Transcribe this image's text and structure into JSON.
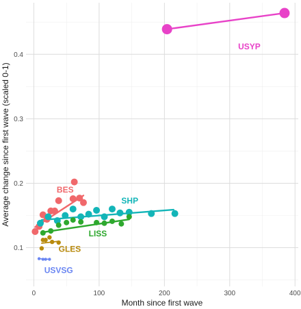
{
  "chart_data": {
    "type": "scatter",
    "xlabel": "Month since first wave",
    "ylabel": "Average change since first wave (scaled 0-1)",
    "xlim": [
      -12,
      405
    ],
    "ylim": [
      0.04,
      0.48
    ],
    "x_ticks": [
      0,
      100,
      200,
      300,
      400
    ],
    "y_ticks": [
      0.1,
      0.2,
      0.3,
      0.4
    ],
    "y_tick_labels": [
      "0.1",
      "0.2",
      "0.3",
      "0.4"
    ],
    "x_minor_ticks": [
      50,
      150,
      250,
      350
    ],
    "y_minor_ticks": [
      0.05,
      0.15,
      0.25,
      0.35,
      0.45
    ],
    "grid": true,
    "legend": "none",
    "series": [
      {
        "name": "USYP",
        "color": "#e842c8",
        "marker_size": "large",
        "label_at": [
          330,
          0.412
        ],
        "points": [
          [
            204,
            0.439
          ],
          [
            384,
            0.464
          ]
        ],
        "fit": [
          [
            204,
            0.439
          ],
          [
            384,
            0.464
          ]
        ]
      },
      {
        "name": "BES",
        "color": "#f0686b",
        "marker_size": "medium",
        "label_at": [
          48,
          0.19
        ],
        "points": [
          [
            2,
            0.125
          ],
          [
            8,
            0.133
          ],
          [
            14,
            0.151
          ],
          [
            20,
            0.144
          ],
          [
            26,
            0.157
          ],
          [
            32,
            0.157
          ],
          [
            38,
            0.173
          ],
          [
            60,
            0.176
          ],
          [
            62,
            0.202
          ],
          [
            70,
            0.177
          ],
          [
            76,
            0.17
          ]
        ],
        "fit": [
          [
            2,
            0.132
          ],
          [
            76,
            0.181
          ]
        ]
      },
      {
        "name": "SHP",
        "color": "#13b5b8",
        "marker_size": "medium",
        "label_at": [
          147,
          0.173
        ],
        "points": [
          [
            10,
            0.138
          ],
          [
            22,
            0.148
          ],
          [
            36,
            0.142
          ],
          [
            48,
            0.15
          ],
          [
            60,
            0.16
          ],
          [
            72,
            0.148
          ],
          [
            84,
            0.152
          ],
          [
            96,
            0.158
          ],
          [
            108,
            0.148
          ],
          [
            120,
            0.16
          ],
          [
            132,
            0.154
          ],
          [
            146,
            0.155
          ],
          [
            180,
            0.153
          ],
          [
            216,
            0.153
          ]
        ],
        "fit": [
          [
            12,
            0.143
          ],
          [
            214,
            0.159
          ]
        ]
      },
      {
        "name": "LISS",
        "color": "#2ea82e",
        "marker_size": "small",
        "label_at": [
          98,
          0.122
        ],
        "points": [
          [
            14,
            0.123
          ],
          [
            26,
            0.126
          ],
          [
            38,
            0.135
          ],
          [
            50,
            0.139
          ],
          [
            60,
            0.143
          ],
          [
            72,
            0.14
          ],
          [
            96,
            0.139
          ],
          [
            108,
            0.138
          ],
          [
            120,
            0.141
          ],
          [
            134,
            0.137
          ],
          [
            146,
            0.148
          ]
        ],
        "fit": [
          [
            14,
            0.124
          ],
          [
            146,
            0.144
          ]
        ]
      },
      {
        "name": "GLES",
        "color": "#b88a0d",
        "marker_size": "tiny",
        "label_at": [
          55,
          0.098
        ],
        "points": [
          [
            12,
            0.099
          ],
          [
            14,
            0.112
          ],
          [
            18,
            0.112
          ],
          [
            24,
            0.116
          ],
          [
            28,
            0.109
          ],
          [
            38,
            0.108
          ]
        ],
        "fit": [
          [
            12,
            0.107
          ],
          [
            38,
            0.11
          ]
        ]
      },
      {
        "name": "USVSG",
        "color": "#6a86f2",
        "marker_size": "micro",
        "label_at": [
          38,
          0.065
        ],
        "points": [
          [
            8,
            0.083
          ],
          [
            14,
            0.082
          ],
          [
            18,
            0.082
          ],
          [
            24,
            0.082
          ]
        ],
        "fit": [
          [
            8,
            0.083
          ],
          [
            24,
            0.082
          ]
        ]
      }
    ]
  }
}
